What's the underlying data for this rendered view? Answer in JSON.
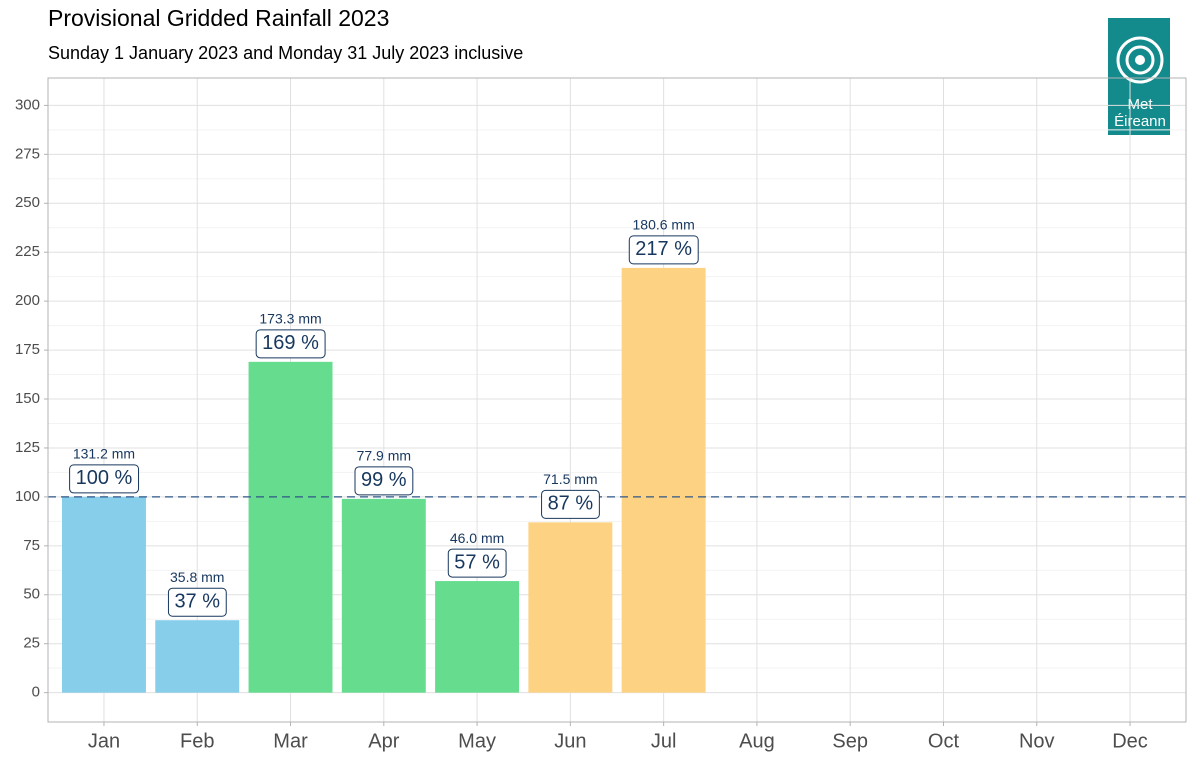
{
  "chart_data": {
    "type": "bar",
    "title": "Provisional Gridded Rainfall 2023",
    "subtitle": "Sunday 1 January 2023 and Monday 31 July 2023 inclusive",
    "logo_text": [
      "Met",
      "Éireann"
    ],
    "categories": [
      "Jan",
      "Feb",
      "Mar",
      "Apr",
      "May",
      "Jun",
      "Jul",
      "Aug",
      "Sep",
      "Oct",
      "Nov",
      "Dec"
    ],
    "values": [
      100,
      37,
      169,
      99,
      57,
      87,
      217,
      null,
      null,
      null,
      null,
      null
    ],
    "value_labels": [
      "100 %",
      "37 %",
      "169 %",
      "99 %",
      "57 %",
      "87 %",
      "217 %",
      null,
      null,
      null,
      null,
      null
    ],
    "rainfall_labels": [
      "131.2 mm",
      "35.8 mm",
      "173.3 mm",
      "77.9 mm",
      "46.0 mm",
      "71.5 mm",
      "180.6 mm",
      null,
      null,
      null,
      null,
      null
    ],
    "colors": [
      "#87ceeb",
      "#87ceeb",
      "#66dd8e",
      "#66dd8e",
      "#66dd8e",
      "#fdd383",
      "#fdd383",
      null,
      null,
      null,
      null,
      null
    ],
    "reference_line": 100,
    "reference_color": "#2f5587",
    "label_color": "#17375e",
    "ylim": [
      -15,
      314
    ],
    "yticks": [
      0,
      25,
      50,
      75,
      100,
      125,
      150,
      175,
      200,
      225,
      250,
      275,
      300
    ],
    "y_minor_ticks": [
      12.5,
      37.5,
      62.5,
      87.5,
      112.5,
      137.5,
      162.5,
      187.5,
      212.5,
      237.5,
      262.5,
      287.5
    ],
    "grid": true
  }
}
